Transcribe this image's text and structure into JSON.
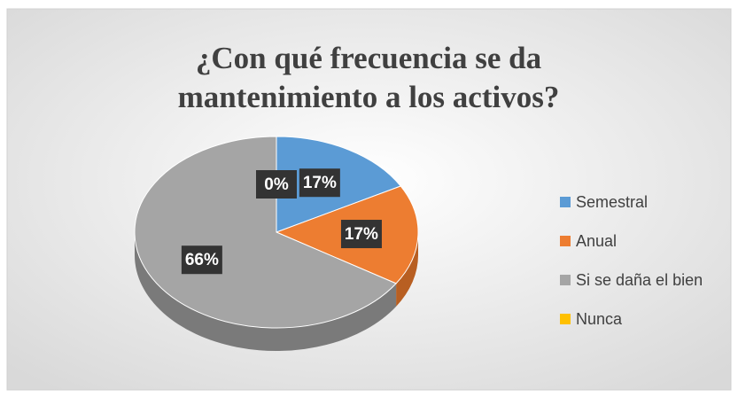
{
  "chart_data": {
    "type": "pie",
    "title": "¿Con qué frecuencia se da mantenimiento a los activos?",
    "categories": [
      "Semestral",
      "Anual",
      "Si  se daña el bien",
      "Nunca"
    ],
    "values": [
      17,
      17,
      66,
      0
    ],
    "value_labels": [
      "17%",
      "17%",
      "66%",
      "0%"
    ],
    "colors": [
      "#5b9bd5",
      "#ed7d31",
      "#a5a5a5",
      "#ffc000"
    ],
    "side_colors": [
      "#3f76a8",
      "#b85f22",
      "#7a7a7a",
      "#c79600"
    ],
    "legend": "right"
  }
}
